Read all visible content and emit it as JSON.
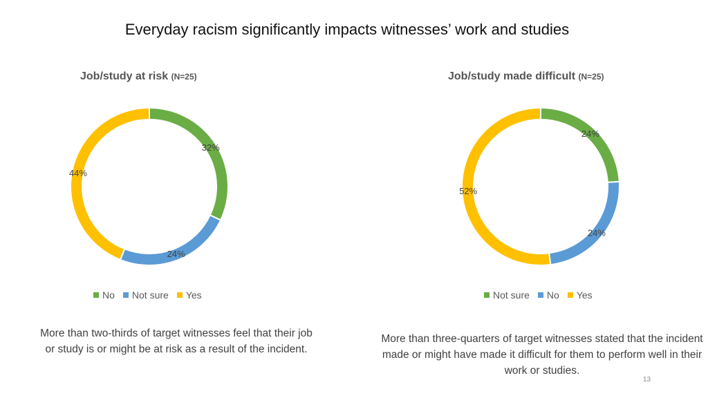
{
  "slide": {
    "title": "Everyday racism significantly impacts witnesses’ work and studies",
    "page_number": "13"
  },
  "colors": {
    "green": "#6aad45",
    "blue": "#5b9bd5",
    "yellow": "#ffc000"
  },
  "chart_data": [
    {
      "type": "pie",
      "donut": true,
      "title": "Job/study at risk",
      "title_suffix": "(N=25)",
      "legend_position": "bottom",
      "legend": [
        "No",
        "Not sure",
        "Yes"
      ],
      "slices": [
        {
          "label": "No",
          "value": 32,
          "display": "32%",
          "color": "#6aad45"
        },
        {
          "label": "Not sure",
          "value": 24,
          "display": "24%",
          "color": "#5b9bd5"
        },
        {
          "label": "Yes",
          "value": 44,
          "display": "44%",
          "color": "#ffc000"
        }
      ]
    },
    {
      "type": "pie",
      "donut": true,
      "title": "Job/study made difficult",
      "title_suffix": "(N=25)",
      "legend_position": "bottom",
      "legend": [
        "Not sure",
        "No",
        "Yes"
      ],
      "slices": [
        {
          "label": "Not sure",
          "value": 24,
          "display": "24%",
          "color": "#6aad45"
        },
        {
          "label": "No",
          "value": 24,
          "display": "24%",
          "color": "#5b9bd5"
        },
        {
          "label": "Yes",
          "value": 52,
          "display": "52%",
          "color": "#ffc000"
        }
      ]
    }
  ],
  "captions": {
    "left": "More than two-thirds of target witnesses feel that their job or study is or might be at risk as a result of the incident.",
    "right": "More than three-quarters of target witnesses stated that the incident made or might have made it difficult for them to perform well in their work or studies."
  }
}
